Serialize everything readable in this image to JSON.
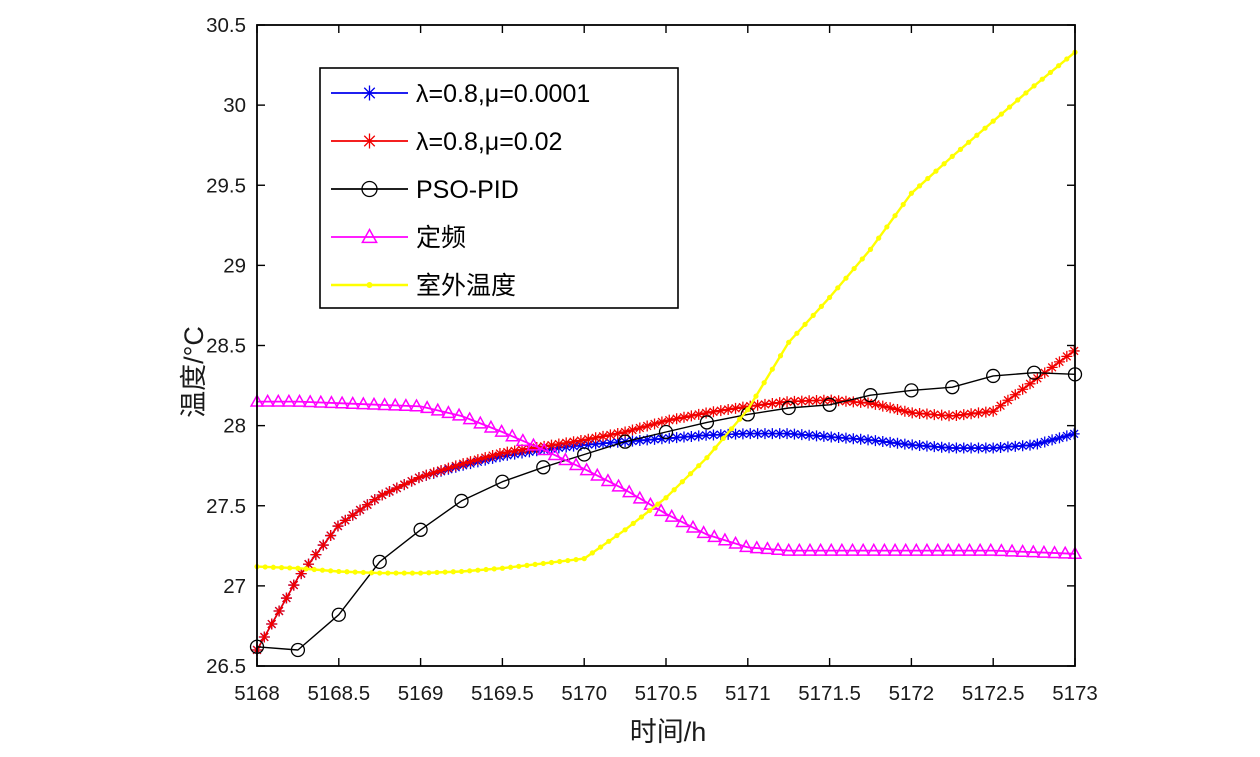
{
  "figure": {
    "background_color": "#ffffff",
    "frame_color": "#000000"
  },
  "chart_data": {
    "type": "line",
    "title": "",
    "xlabel": "时间/h",
    "ylabel": "温度/°C",
    "xlim": [
      5168,
      5173
    ],
    "ylim": [
      26.5,
      30.5
    ],
    "grid": false,
    "legend_position": "upper-left-inside",
    "xtick_labels": [
      "5168",
      "5168.5",
      "5169",
      "5169.5",
      "5170",
      "5170.5",
      "5171",
      "5171.5",
      "5172",
      "5172.5",
      "5173"
    ],
    "ytick_labels": [
      "26.5",
      "27",
      "27.5",
      "28",
      "28.5",
      "29",
      "29.5",
      "30",
      "30.5"
    ],
    "x": [
      5168,
      5168.25,
      5168.5,
      5168.75,
      5169,
      5169.25,
      5169.5,
      5169.75,
      5170,
      5170.25,
      5170.5,
      5170.75,
      5171,
      5171.25,
      5171.5,
      5171.75,
      5172,
      5172.25,
      5172.5,
      5172.75,
      5173
    ],
    "series": [
      {
        "name": "λ=0.8,μ=0.0001",
        "color": "#0000ee",
        "marker": "asterisk",
        "marker_size": 5.5,
        "marker_step": 0.045,
        "line_width": 1.6,
        "values": [
          26.6,
          27.05,
          27.38,
          27.56,
          27.68,
          27.75,
          27.81,
          27.85,
          27.88,
          27.9,
          27.92,
          27.94,
          27.95,
          27.95,
          27.93,
          27.91,
          27.88,
          27.86,
          27.86,
          27.88,
          27.95
        ]
      },
      {
        "name": "λ=0.8,μ=0.02",
        "color": "#f20000",
        "marker": "asterisk",
        "marker_size": 5.5,
        "marker_step": 0.045,
        "line_width": 1.6,
        "values": [
          26.6,
          27.05,
          27.38,
          27.56,
          27.68,
          27.76,
          27.83,
          27.87,
          27.91,
          27.96,
          28.03,
          28.08,
          28.12,
          28.15,
          28.16,
          28.14,
          28.08,
          28.06,
          28.09,
          28.28,
          28.47
        ]
      },
      {
        "name": "PSO-PID",
        "color": "#000000",
        "marker": "circle",
        "marker_size": 6.5,
        "marker_step": 0.25,
        "line_width": 1.4,
        "values": [
          26.62,
          26.6,
          26.82,
          27.15,
          27.35,
          27.53,
          27.65,
          27.74,
          27.82,
          27.9,
          27.96,
          28.02,
          28.07,
          28.11,
          28.13,
          28.19,
          28.22,
          28.24,
          28.31,
          28.33,
          28.32
        ]
      },
      {
        "name": "定频",
        "color": "#ff00ff",
        "marker": "triangle",
        "marker_size": 6.2,
        "marker_step": 0.065,
        "line_width": 1.8,
        "values": [
          28.15,
          28.15,
          28.14,
          28.13,
          28.12,
          28.06,
          27.96,
          27.85,
          27.73,
          27.6,
          27.45,
          27.32,
          27.24,
          27.22,
          27.22,
          27.22,
          27.22,
          27.22,
          27.22,
          27.21,
          27.2
        ]
      },
      {
        "name": "室外温度",
        "color": "#ffff00",
        "marker": "dot",
        "marker_size": 2.6,
        "marker_step": 0.05,
        "line_width": 2.4,
        "values": [
          27.12,
          27.11,
          27.09,
          27.08,
          27.08,
          27.09,
          27.11,
          27.14,
          27.17,
          27.35,
          27.55,
          27.8,
          28.1,
          28.52,
          28.8,
          29.1,
          29.45,
          29.68,
          29.9,
          30.12,
          30.33
        ]
      }
    ]
  }
}
